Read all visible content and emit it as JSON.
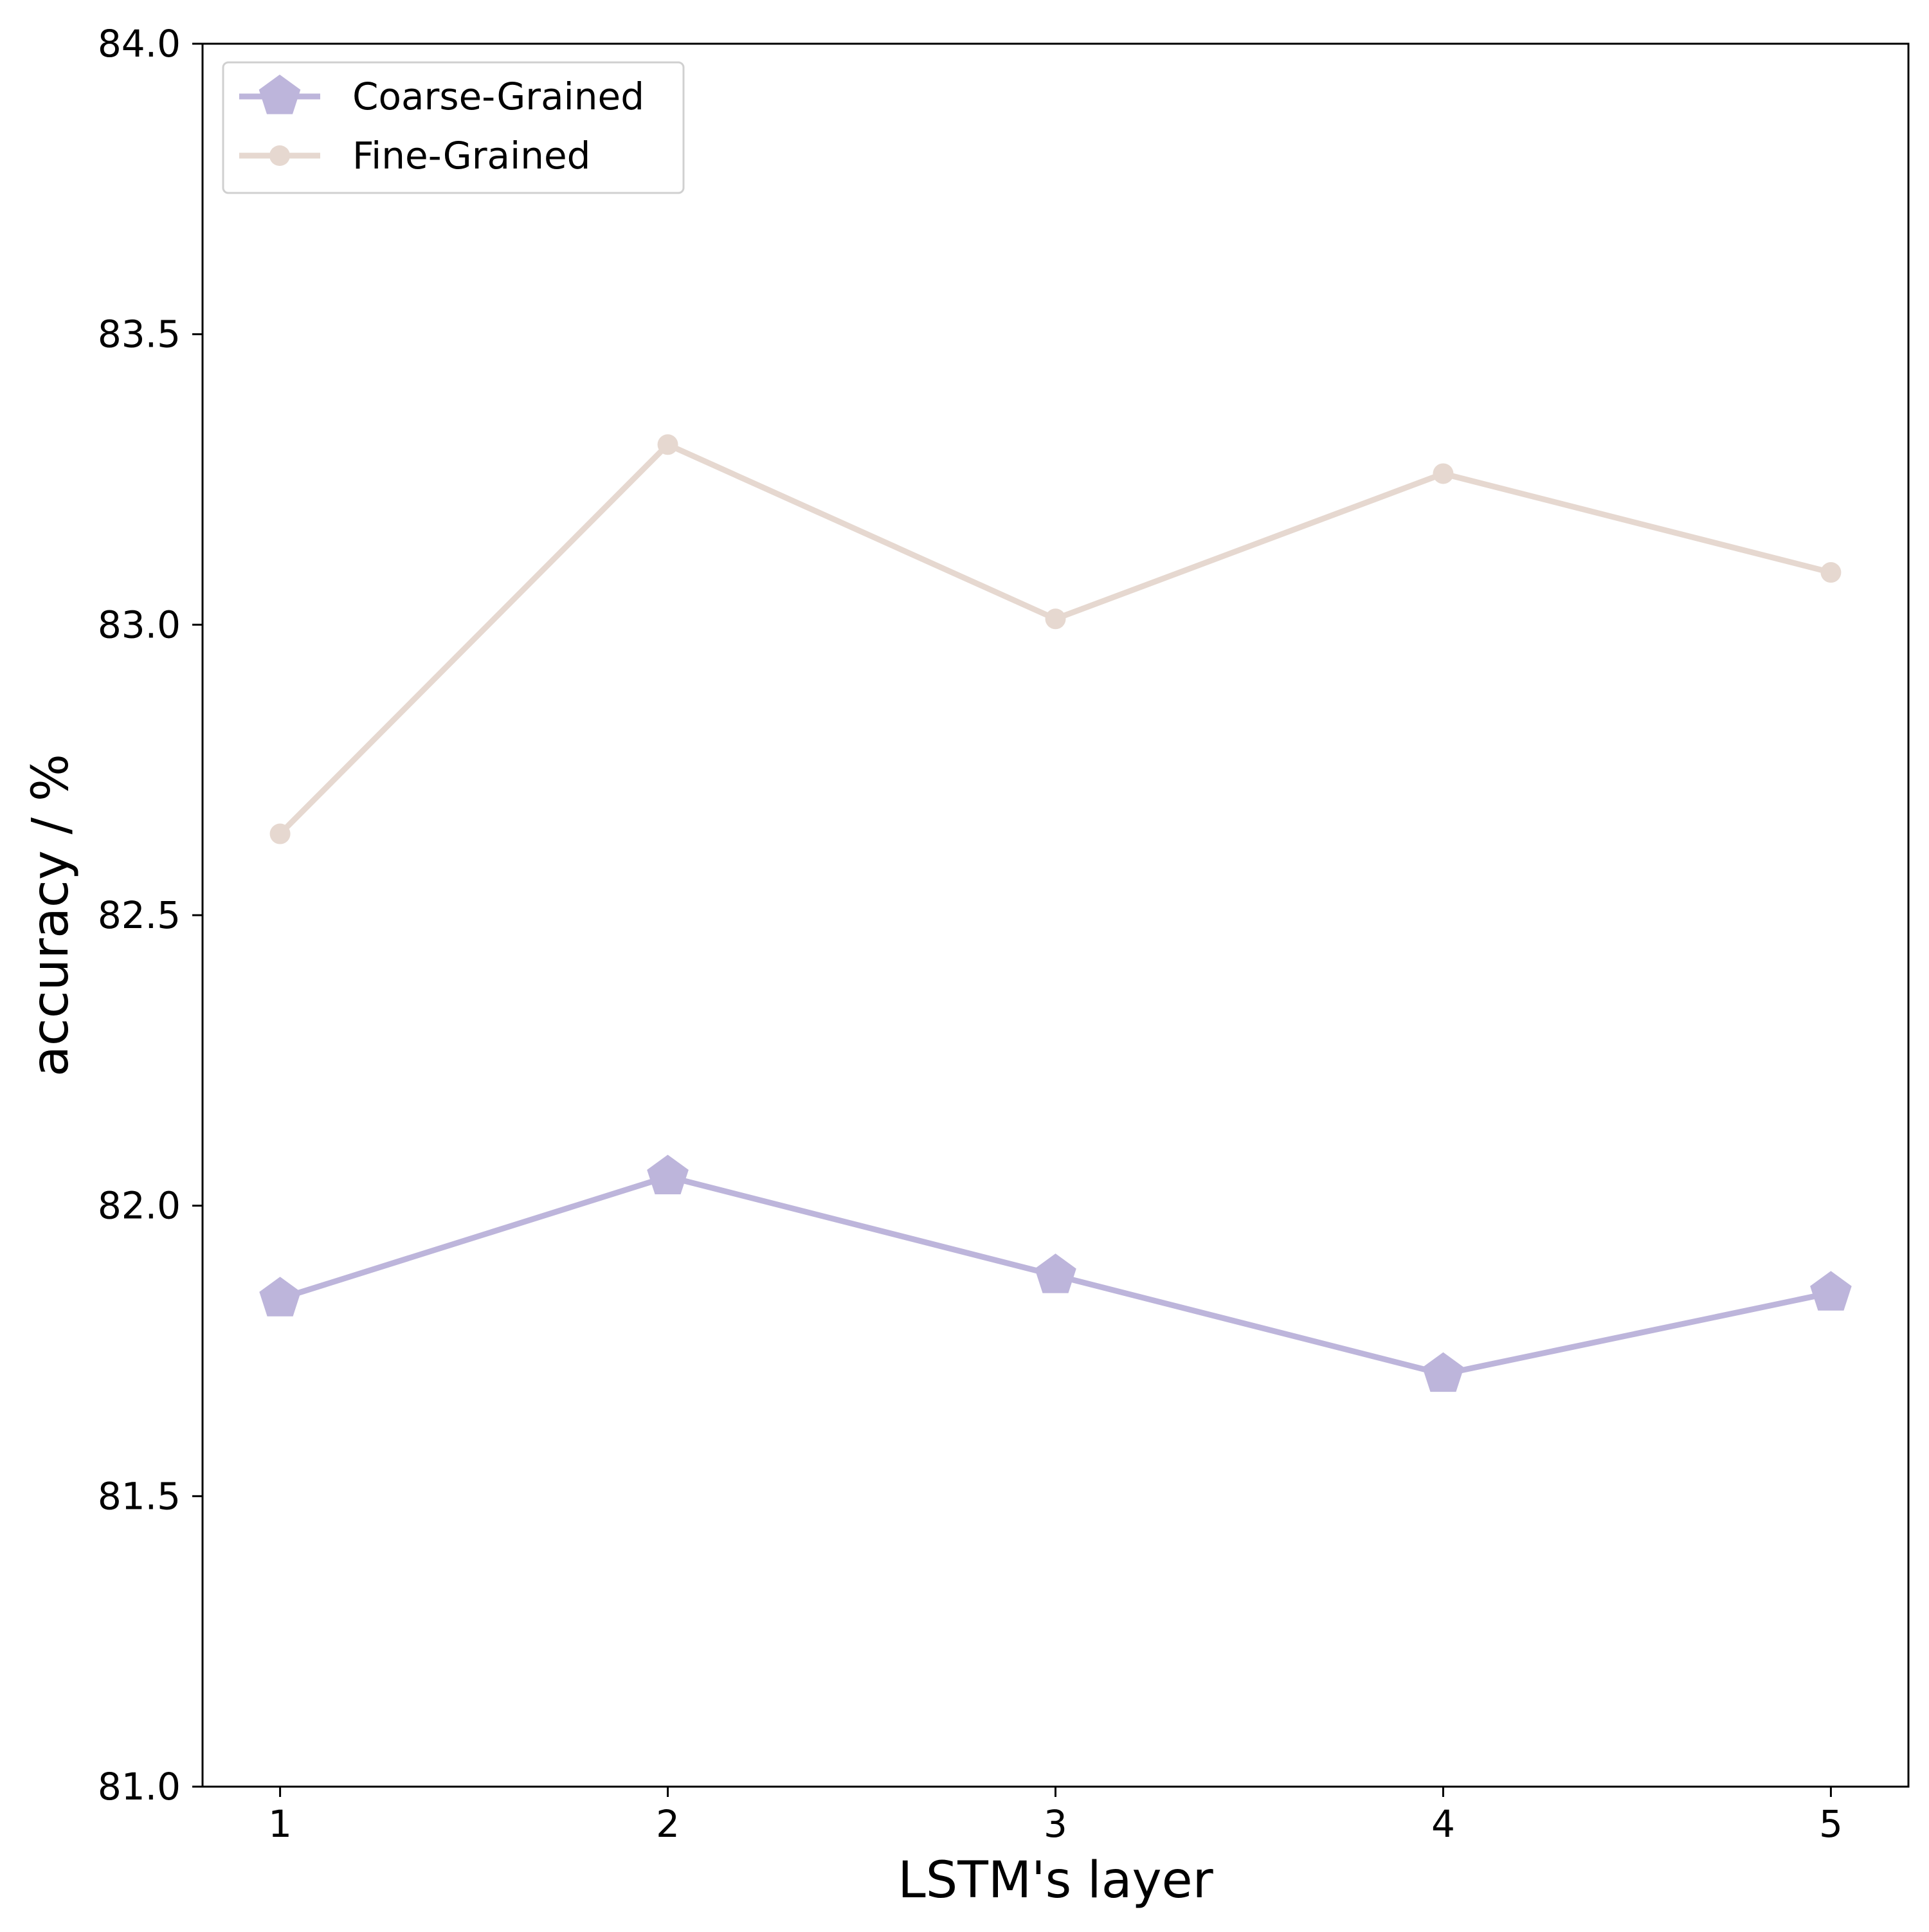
{
  "chart_data": {
    "type": "line",
    "title": "",
    "xlabel": "LSTM's layer",
    "ylabel": "accuracy / %",
    "x": [
      1,
      2,
      3,
      4,
      5
    ],
    "xticks": [
      "1",
      "2",
      "3",
      "4",
      "5"
    ],
    "xlim": [
      0.8,
      5.2
    ],
    "ylim": [
      81.0,
      84.0
    ],
    "yticks": [
      "81.0",
      "81.5",
      "82.0",
      "82.5",
      "83.0",
      "83.5",
      "84.0"
    ],
    "grid": false,
    "legend_position": "top-left",
    "series": [
      {
        "name": "Coarse-Grained",
        "marker": "pentagon",
        "color": "#bdb5db",
        "values": [
          81.84,
          82.05,
          81.88,
          81.71,
          81.85
        ]
      },
      {
        "name": "Fine-Grained",
        "marker": "circle",
        "color": "#e6d8d0",
        "values": [
          82.64,
          83.31,
          83.01,
          83.26,
          83.09
        ]
      }
    ]
  }
}
